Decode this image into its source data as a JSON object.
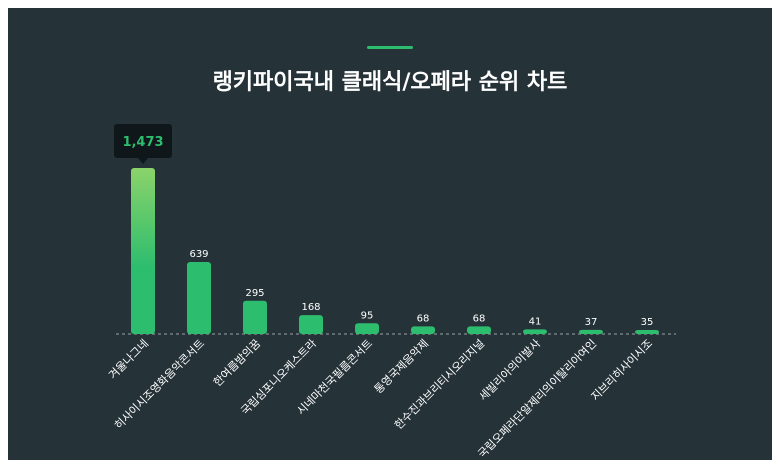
{
  "chart_data": {
    "type": "bar",
    "title": "랭키파이국내 클래식/오페라 순위 차트",
    "categories": [
      "겨울나그네",
      "히사이시조영화음악콘서트",
      "한여름밤의꿈",
      "국립심포니오케스트라",
      "시네마천국필름콘서트",
      "통영국제음악제",
      "한수진과브리티시오리지널",
      "세빌리아의이발사",
      "국립오페라단알제리의이탈리아여인",
      "지브리히사이시조"
    ],
    "values": [
      1473,
      639,
      295,
      168,
      95,
      68,
      68,
      41,
      37,
      35
    ],
    "value_labels": [
      "1,473",
      "639",
      "295",
      "168",
      "95",
      "68",
      "68",
      "41",
      "37",
      "35"
    ],
    "tooltip": {
      "category": "겨울나그네",
      "value_label": "1,473"
    },
    "ylim": [
      0,
      1473
    ],
    "grid": false,
    "colors": {
      "bar": "#2dbd6e",
      "bar_highlight_top": "#8bd36a",
      "background": "#253238",
      "accent": "#2dbd6e",
      "tooltip_bg": "#0f171b",
      "baseline": "#9aa4a8"
    }
  }
}
